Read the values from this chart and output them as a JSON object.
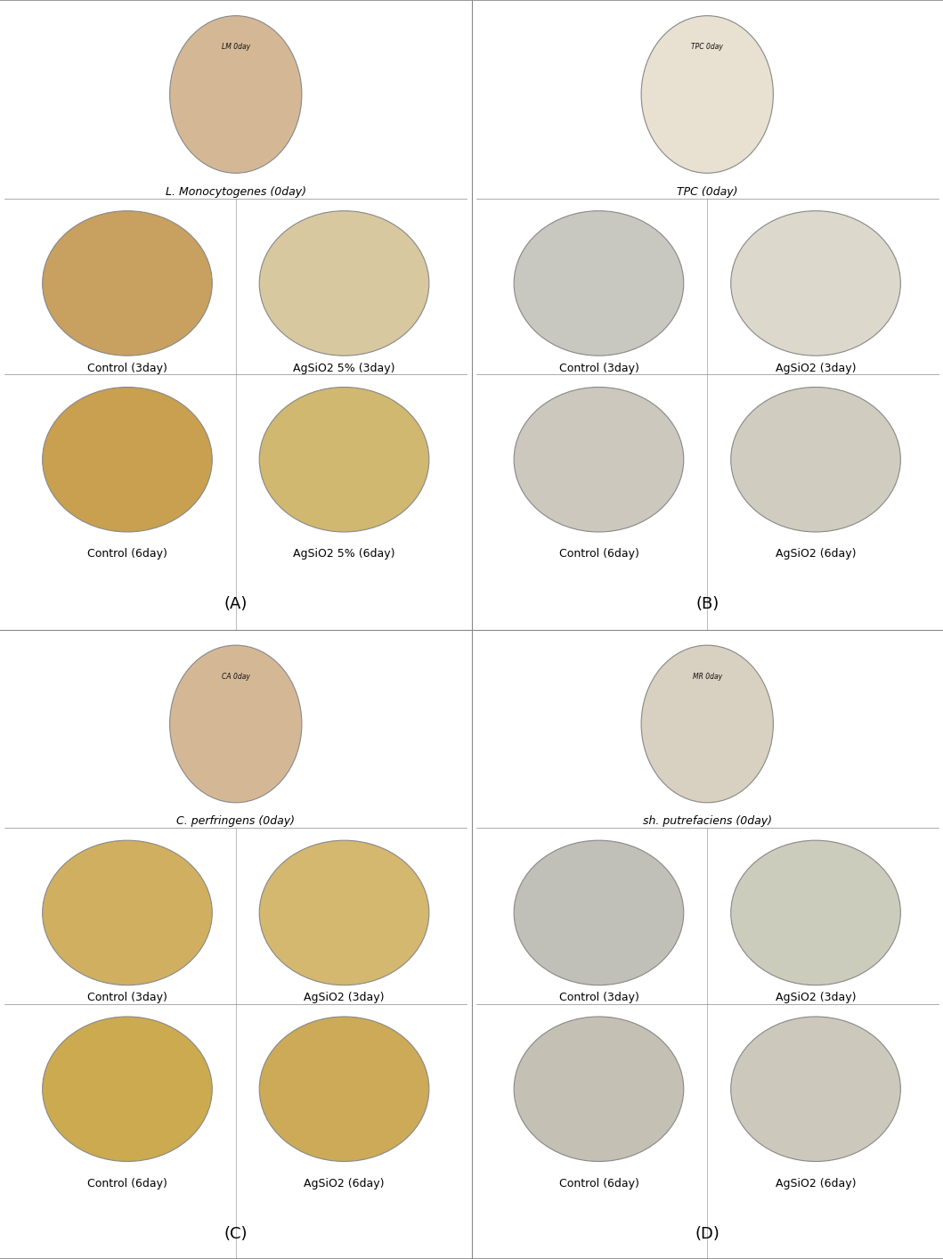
{
  "title": "",
  "panels": [
    "A",
    "B",
    "C",
    "D"
  ],
  "panel_labels": [
    "(A)",
    "(B)",
    "(C)",
    "(D)"
  ],
  "section_A": {
    "day0_label": "L. Monocytogenes (0day)",
    "day3_labels": [
      "Control (3day)",
      "AgSiO2 5% (3day)"
    ],
    "day6_labels": [
      "Control (6day)",
      "AgSiO2 5% (6day)"
    ]
  },
  "section_B": {
    "day0_label": "TPC (0day)",
    "day3_labels": [
      "Control (3day)",
      "AgSiO2 (3day)"
    ],
    "day6_labels": [
      "Control (6day)",
      "AgSiO2 (6day)"
    ]
  },
  "section_C": {
    "day0_label": "C. perfringens (0day)",
    "day3_labels": [
      "Control (3day)",
      "AgSiO2 (3day)"
    ],
    "day6_labels": [
      "Control (6day)",
      "AgSiO2 (6day)"
    ]
  },
  "section_D": {
    "day0_label": "sh. putrefaciens (0day)",
    "day3_labels": [
      "Control (3day)",
      "AgSiO2 (3day)"
    ],
    "day6_labels": [
      "Control (6day)",
      "AgSiO2 (6day)"
    ]
  },
  "dish_colors": {
    "A_day0": "#d4b896",
    "A_ctrl3": "#c8a060",
    "A_ag3": "#d8c8a0",
    "A_ctrl6": "#c8a050",
    "A_ag6": "#d0b870",
    "B_day0": "#e8e0d0",
    "B_ctrl3": "#c8c8c0",
    "B_ag3": "#ddd8cc",
    "B_ctrl6": "#ccc8be",
    "B_ag6": "#d0ccc0",
    "C_day0": "#d4b896",
    "C_ctrl3": "#d0b060",
    "C_ag3": "#d4b870",
    "C_ctrl6": "#ccaa50",
    "C_ag6": "#ccaa58",
    "D_day0": "#d8d0c0",
    "D_ctrl3": "#c0c0b8",
    "D_ag3": "#ccccbc",
    "D_ctrl6": "#c4c0b4",
    "D_ag6": "#ccc8bc"
  },
  "fig_bg": "#ffffff",
  "border_color": "#888888",
  "label_fontsize": 9,
  "panel_fontsize": 13,
  "separator_color": "#888888"
}
